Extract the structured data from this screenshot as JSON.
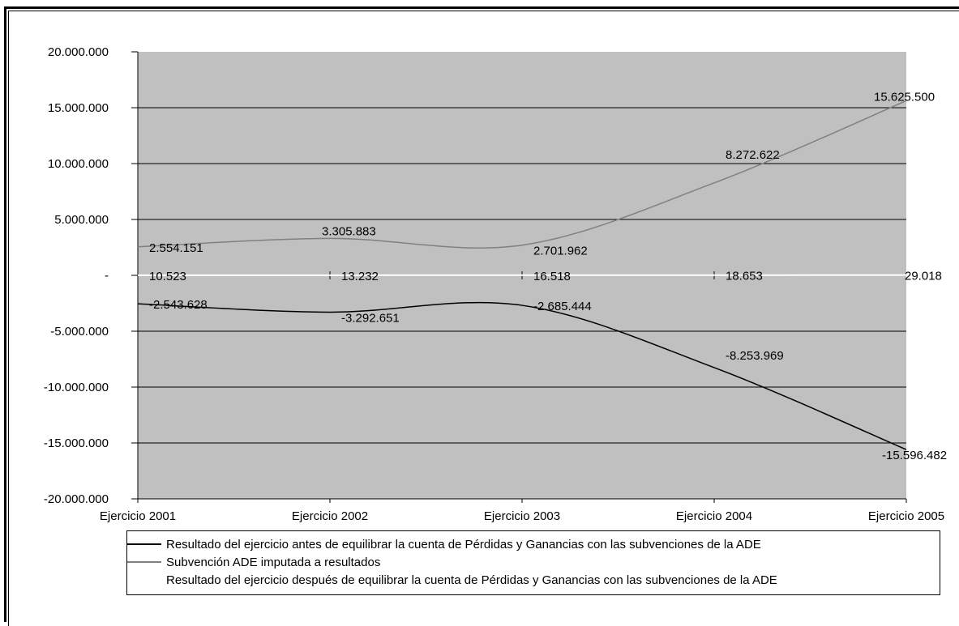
{
  "chart_data": {
    "type": "line",
    "categories": [
      "Ejercicio 2001",
      "Ejercicio 2002",
      "Ejercicio 2003",
      "Ejercicio 2004",
      "Ejercicio 2005"
    ],
    "ylim": [
      -20000000,
      20000000
    ],
    "yticks": [
      {
        "value": 20000000,
        "label": "20.000.000"
      },
      {
        "value": 15000000,
        "label": "15.000.000"
      },
      {
        "value": 10000000,
        "label": "10.000.000"
      },
      {
        "value": 5000000,
        "label": "5.000.000"
      },
      {
        "value": 0,
        "label": "-"
      },
      {
        "value": -5000000,
        "label": "-5.000.000"
      },
      {
        "value": -10000000,
        "label": "-10.000.000"
      },
      {
        "value": -15000000,
        "label": "-15.000.000"
      },
      {
        "value": -20000000,
        "label": "-20.000.000"
      }
    ],
    "grid": true,
    "plot_background": "#c0c0c0",
    "legend_position": "bottom",
    "series": [
      {
        "name": "Resultado del ejercicio antes de equilibrar la cuenta de Pérdidas y Ganancias con las subvenciones de la ADE",
        "color": "#000000",
        "values": [
          -2543628,
          -3292651,
          -2685444,
          -8253969,
          -15596482
        ],
        "labels": [
          "-2.543.628",
          "-3.292.651",
          "-2.685.444",
          "-8.253.969",
          "-15.596.482"
        ]
      },
      {
        "name": "Subvención ADE imputada a resultados",
        "color": "#808080",
        "values": [
          2554151,
          3305883,
          2701962,
          8272622,
          15625500
        ],
        "labels": [
          "2.554.151",
          "3.305.883",
          "2.701.962",
          "8.272.622",
          "15.625.500"
        ]
      },
      {
        "name": "Resultado del ejercicio después de equilibrar la cuenta de Pérdidas y Ganancias con las subvenciones de la ADE",
        "color": "#ffffff",
        "values": [
          10523,
          13232,
          16518,
          18653,
          29018
        ],
        "labels": [
          "10.523",
          "13.232",
          "16.518",
          "18.653",
          "29.018"
        ]
      }
    ]
  }
}
